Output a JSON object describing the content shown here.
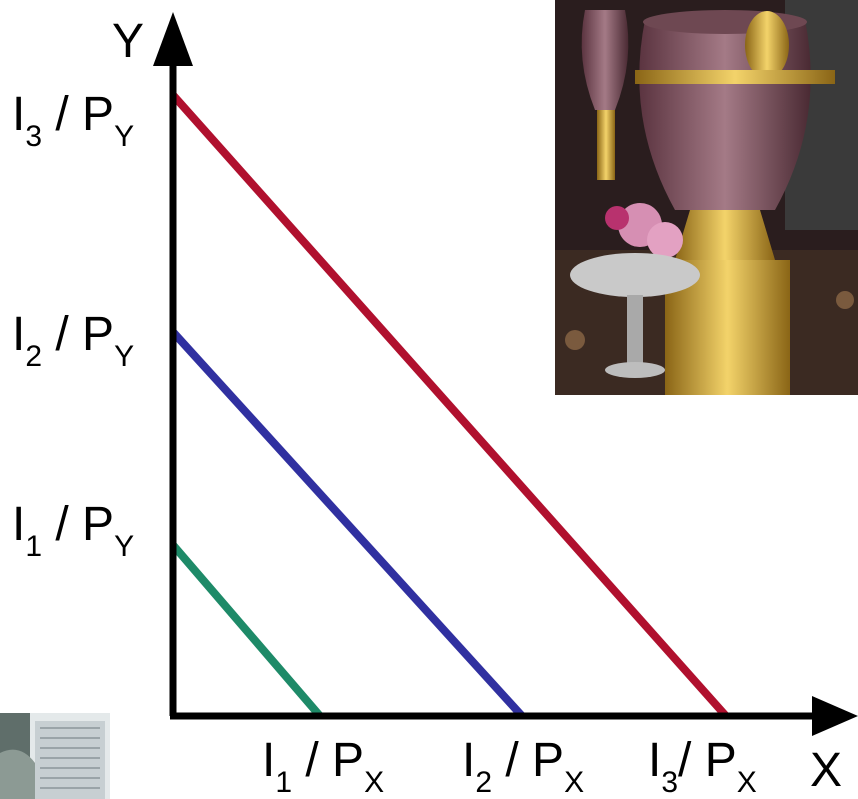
{
  "axes": {
    "y_label": "Y",
    "x_label": "X"
  },
  "y_intercepts": [
    {
      "base": "I",
      "sub": "1",
      "slash": " / P",
      "sub2": "Y"
    },
    {
      "base": "I",
      "sub": "2",
      "slash": " / P",
      "sub2": "Y"
    },
    {
      "base": "I",
      "sub": "3",
      "slash": " / P",
      "sub2": "Y"
    }
  ],
  "x_intercepts": [
    {
      "base": "I",
      "sub": "1",
      "slash": " / P",
      "sub2": "X"
    },
    {
      "base": "I",
      "sub": "2",
      "slash": " / P",
      "sub2": "X"
    },
    {
      "base": "I",
      "sub": "3",
      "slash": "/ P",
      "sub2": "X"
    }
  ],
  "colors": {
    "line_1": "#1e8a68",
    "line_2": "#3030a0",
    "line_3": "#b0102e",
    "axis": "#000000"
  },
  "photos": {
    "top_right": "ornate-crystal-vase-photo",
    "bottom_left": "window-photo"
  }
}
